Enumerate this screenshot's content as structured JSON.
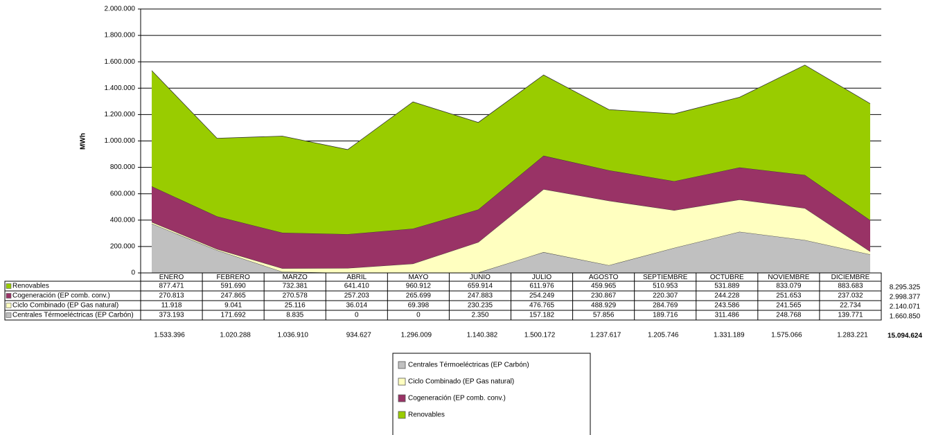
{
  "chart_data": {
    "type": "stacked_area",
    "y_label": "MWh",
    "ylim": [
      0,
      2000000
    ],
    "yticks": [
      0,
      {
        "value": 200000,
        "label": "200.000"
      },
      {
        "value": 400000,
        "label": "400.000"
      },
      {
        "value": 600000,
        "label": "600.000"
      },
      {
        "value": 800000,
        "label": "800.000"
      },
      {
        "value": 1000000,
        "label": "1.000.000"
      },
      {
        "value": 1200000,
        "label": "1.200.000"
      },
      {
        "value": 1400000,
        "label": "1.400.000"
      },
      {
        "value": 1600000,
        "label": "1.600.000"
      },
      {
        "value": 1800000,
        "label": "1.800.000"
      },
      {
        "value": 2000000,
        "label": "2.000.000"
      }
    ],
    "grid": true,
    "categories": [
      "ENERO",
      "FEBRERO",
      "MARZO",
      "ABRIL",
      "MAYO",
      "JUNIO",
      "JULIO",
      "AGOSTO",
      "SEPTIEMBRE",
      "OCTUBRE",
      "NOVIEMBRE",
      "DICIEMBRE"
    ],
    "series": [
      {
        "name": "Centrales Térmoeléctricas (EP Carbón)",
        "color": "#c0c0c0",
        "values": [
          373193,
          171692,
          8835,
          0,
          0,
          2350,
          157182,
          57856,
          189716,
          311486,
          248768,
          139771
        ],
        "value_labels": [
          "373.193",
          "171.692",
          "8.835",
          "0",
          "0",
          "2.350",
          "157.182",
          "57.856",
          "189.716",
          "311.486",
          "248.768",
          "139.771"
        ],
        "total": 1660850,
        "total_label": "1.660.850"
      },
      {
        "name": "Ciclo Combinado (EP Gas natural)",
        "color": "#ffffc0",
        "values": [
          11918,
          9041,
          25116,
          36014,
          69398,
          230235,
          476765,
          488929,
          284769,
          243586,
          241565,
          22734
        ],
        "value_labels": [
          "11.918",
          "9.041",
          "25.116",
          "36.014",
          "69.398",
          "230.235",
          "476.765",
          "488.929",
          "284.769",
          "243.586",
          "241.565",
          "22.734"
        ],
        "total": 2140071,
        "total_label": "2.140.071"
      },
      {
        "name": "Cogeneración (EP comb. conv.)",
        "color": "#993366",
        "values": [
          270813,
          247865,
          270578,
          257203,
          265699,
          247883,
          254249,
          230867,
          220307,
          244228,
          251653,
          237032
        ],
        "value_labels": [
          "270.813",
          "247.865",
          "270.578",
          "257.203",
          "265.699",
          "247.883",
          "254.249",
          "230.867",
          "220.307",
          "244.228",
          "251.653",
          "237.032"
        ],
        "total": 2998377,
        "total_label": "2.998.377"
      },
      {
        "name": "Renovables",
        "color": "#99cc00",
        "values": [
          877471,
          591690,
          732381,
          641410,
          960912,
          659914,
          611976,
          459965,
          510953,
          531889,
          833079,
          883683
        ],
        "value_labels": [
          "877.471",
          "591.690",
          "732.381",
          "641.410",
          "960.912",
          "659.914",
          "611.976",
          "459.965",
          "510.953",
          "531.889",
          "833.079",
          "883.683"
        ],
        "total": 8295325,
        "total_label": "8.295.325"
      }
    ],
    "column_totals": [
      1533396,
      1020288,
      1036910,
      934627,
      1296009,
      1140382,
      1500172,
      1237617,
      1205746,
      1331189,
      1575066,
      1283221
    ],
    "column_total_labels": [
      "1.533.396",
      "1.020.288",
      "1.036.910",
      "934.627",
      "1.296.009",
      "1.140.382",
      "1.500.172",
      "1.237.617",
      "1.205.746",
      "1.331.189",
      "1.575.066",
      "1.283.221"
    ],
    "grand_total": 15094624,
    "grand_total_label": "15.094.624"
  }
}
